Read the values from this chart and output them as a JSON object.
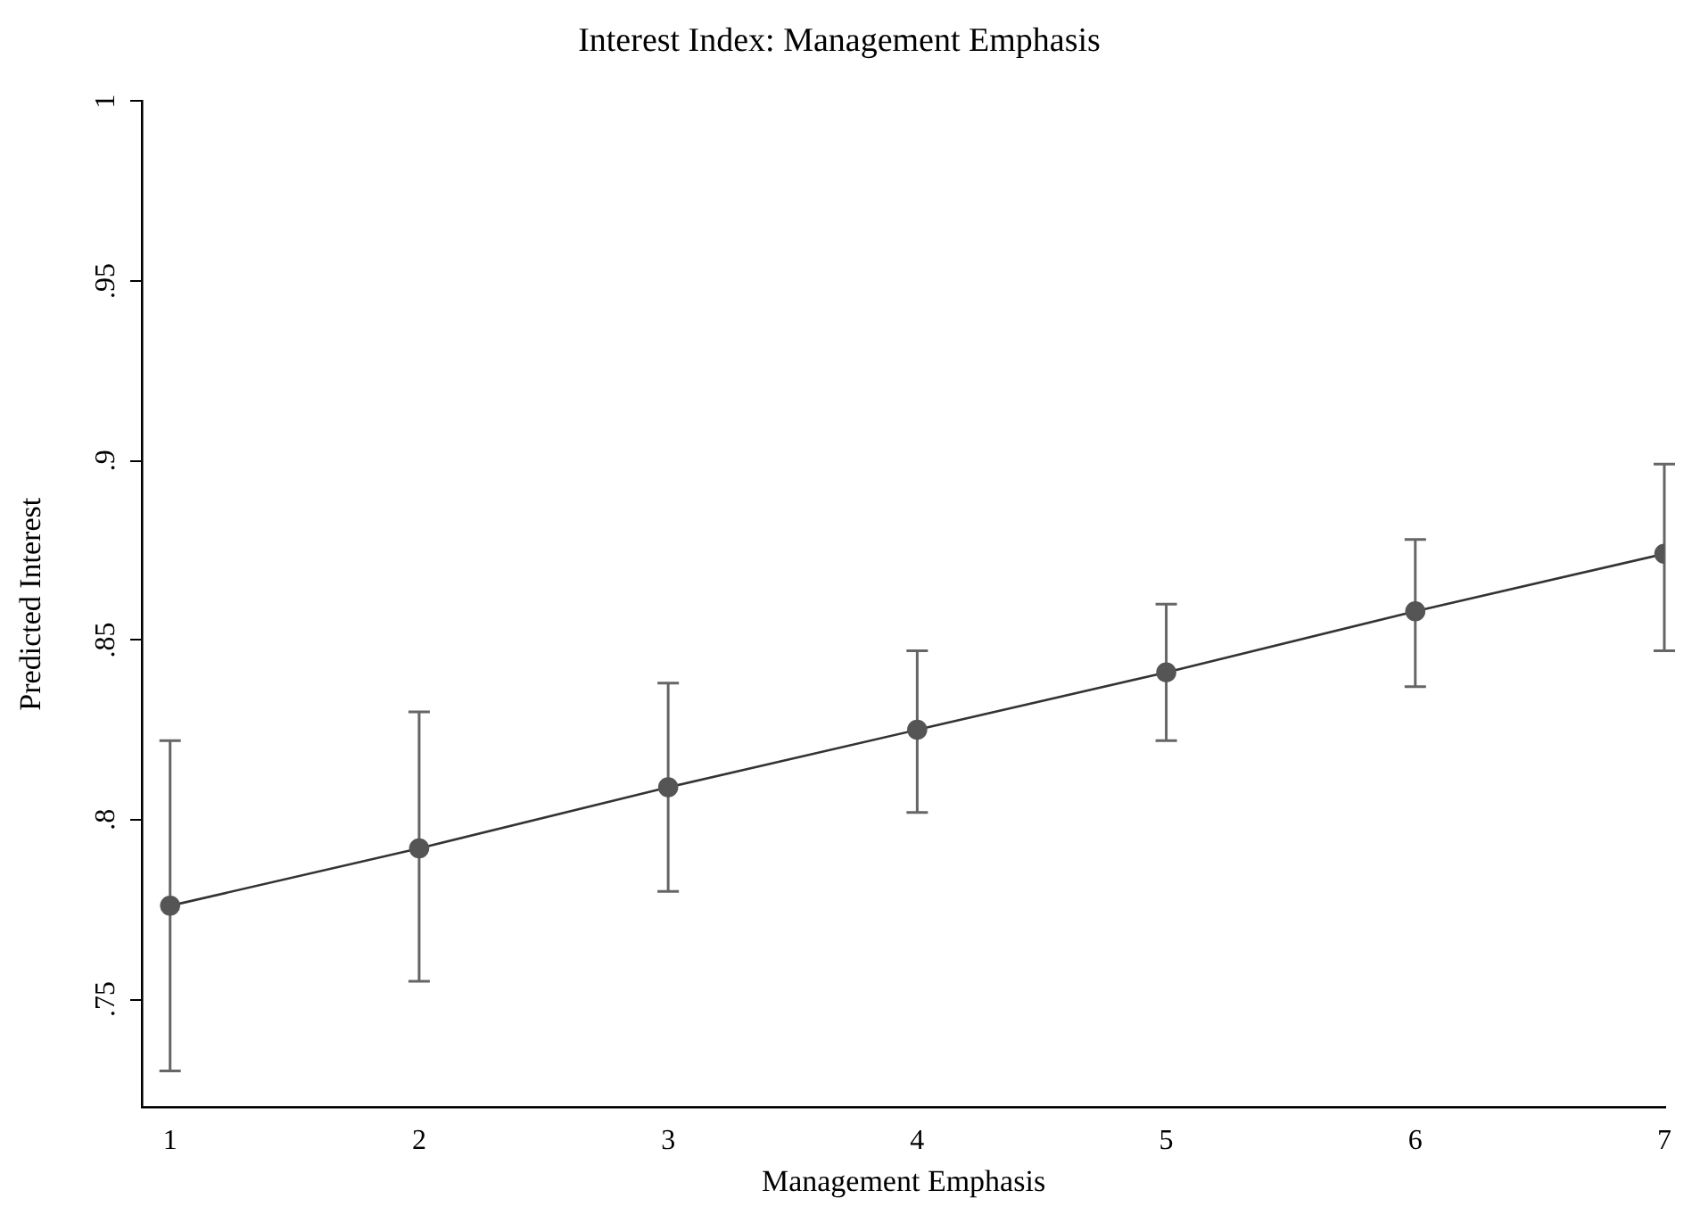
{
  "chart_data": {
    "type": "line",
    "title": "Interest Index: Management Emphasis",
    "xlabel": "Management Emphasis",
    "ylabel": "Predicted Interest",
    "x": [
      1,
      2,
      3,
      4,
      5,
      6,
      7
    ],
    "series": [
      {
        "color": "#555555",
        "values": [
          0.776,
          0.792,
          0.809,
          0.825,
          0.841,
          0.858,
          0.874
        ],
        "errors": [
          [
            0.73,
            0.822
          ],
          [
            0.755,
            0.83
          ],
          [
            0.78,
            0.838
          ],
          [
            0.802,
            0.847
          ],
          [
            0.822,
            0.86
          ],
          [
            0.837,
            0.878
          ],
          [
            0.847,
            0.899
          ]
        ]
      }
    ],
    "xlim": [
      0.89,
      7
    ],
    "ylim": [
      0.72,
      1.0
    ],
    "xticks": [
      1,
      2,
      3,
      4,
      5,
      6,
      7
    ],
    "yticks": [
      {
        "value": 0.75,
        "label": ".75"
      },
      {
        "value": 0.8,
        "label": ".8"
      },
      {
        "value": 0.85,
        "label": ".85"
      },
      {
        "value": 0.9,
        "label": ".9"
      },
      {
        "value": 0.95,
        "label": ".95"
      },
      {
        "value": 1,
        "label": "1"
      }
    ],
    "grid": false,
    "legend": false,
    "marker": "circle",
    "line_style": "solid"
  }
}
